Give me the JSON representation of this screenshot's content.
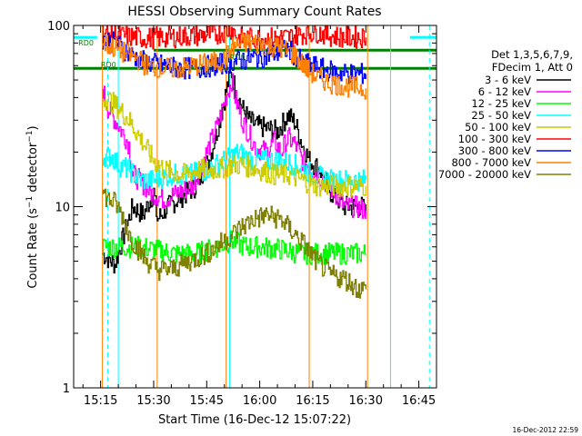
{
  "chart_data": {
    "type": "line",
    "title": "HESSI Observing Summary Count Rates",
    "xlabel": "Start Time (16-Dec-12 15:07:22)",
    "ylabel": "Count Rate (s⁻¹ detector⁻¹)",
    "ylabel_parts": {
      "main": "Count Rate (s",
      "sup1": "−1",
      "mid": " detector",
      "sup2": "−1",
      "end": ")"
    },
    "x_ticks": [
      "15:15",
      "15:30",
      "15:45",
      "16:00",
      "16:15",
      "16:30",
      "16:45"
    ],
    "x_tick_minutes": [
      15,
      30,
      45,
      60,
      75,
      90,
      105
    ],
    "x_range_minutes": [
      7.37,
      110
    ],
    "y_scale": "log",
    "y_range": [
      1,
      100
    ],
    "y_ticks": [
      "1",
      "10",
      "100"
    ],
    "y_tick_values": [
      1,
      10,
      100
    ],
    "legend_header": [
      "Det 1,3,5,6,7,9,",
      "FDecim 1, Att 0"
    ],
    "footer_date": "16-Dec-2012 22:59",
    "annotations": [
      "RD0",
      "RD0",
      "RD0"
    ],
    "series": [
      {
        "name": "3 - 6 keV",
        "color": "#000000",
        "points": [
          [
            15.5,
            5.5
          ],
          [
            19,
            4.8
          ],
          [
            24,
            10
          ],
          [
            27,
            9
          ],
          [
            30,
            12
          ],
          [
            31,
            8.5
          ],
          [
            34,
            10
          ],
          [
            37,
            11
          ],
          [
            42,
            13
          ],
          [
            46,
            19
          ],
          [
            49,
            32
          ],
          [
            51,
            48
          ],
          [
            52,
            55
          ],
          [
            53,
            45
          ],
          [
            55,
            35
          ],
          [
            57,
            30
          ],
          [
            59,
            28
          ],
          [
            62,
            27
          ],
          [
            65,
            26
          ],
          [
            68,
            32
          ],
          [
            70,
            29
          ],
          [
            72,
            22
          ],
          [
            74,
            18
          ],
          [
            77,
            16
          ],
          [
            80,
            12
          ],
          [
            84,
            10
          ],
          [
            87,
            10
          ],
          [
            89,
            10
          ],
          [
            90,
            9
          ]
        ]
      },
      {
        "name": "6 - 12 keV",
        "color": "#ff00ff",
        "points": [
          [
            15.5,
            45
          ],
          [
            17,
            35
          ],
          [
            19,
            30
          ],
          [
            20,
            28
          ],
          [
            22,
            24
          ],
          [
            23,
            22
          ],
          [
            24,
            15
          ],
          [
            26,
            14
          ],
          [
            29,
            12
          ],
          [
            33,
            11
          ],
          [
            37,
            12
          ],
          [
            41,
            13
          ],
          [
            45,
            20
          ],
          [
            48,
            28
          ],
          [
            50,
            38
          ],
          [
            52,
            50
          ],
          [
            53,
            40
          ],
          [
            55,
            30
          ],
          [
            57,
            25
          ],
          [
            59,
            21
          ],
          [
            62,
            20
          ],
          [
            64,
            23
          ],
          [
            66,
            20
          ],
          [
            68,
            24
          ],
          [
            70,
            22
          ],
          [
            72,
            18
          ],
          [
            75,
            16
          ],
          [
            78,
            14
          ],
          [
            81,
            12
          ],
          [
            84,
            10
          ],
          [
            87,
            10
          ],
          [
            90,
            9.5
          ]
        ]
      },
      {
        "name": "12 - 25 keV",
        "color": "#00ff00",
        "points": [
          [
            15.5,
            6
          ],
          [
            22,
            6
          ],
          [
            26,
            6
          ],
          [
            30,
            5.8
          ],
          [
            36,
            5.5
          ],
          [
            42,
            5.5
          ],
          [
            48,
            6
          ],
          [
            52,
            6.5
          ],
          [
            56,
            6
          ],
          [
            60,
            6
          ],
          [
            66,
            5.8
          ],
          [
            72,
            5.5
          ],
          [
            78,
            5.5
          ],
          [
            84,
            5.5
          ],
          [
            90,
            5.5
          ]
        ]
      },
      {
        "name": "25 - 50 keV",
        "color": "#00ffff",
        "points": [
          [
            15.5,
            19
          ],
          [
            18,
            19
          ],
          [
            20,
            17
          ],
          [
            23,
            16
          ],
          [
            26,
            14
          ],
          [
            30,
            14
          ],
          [
            35,
            15
          ],
          [
            40,
            15
          ],
          [
            45,
            16
          ],
          [
            50,
            18
          ],
          [
            54,
            20
          ],
          [
            58,
            18
          ],
          [
            62,
            18
          ],
          [
            66,
            18
          ],
          [
            70,
            17
          ],
          [
            75,
            15
          ],
          [
            80,
            14
          ],
          [
            85,
            14
          ],
          [
            90,
            14
          ]
        ]
      },
      {
        "name": "50 - 100 keV",
        "color": "#cccc00",
        "points": [
          [
            15.5,
            40
          ],
          [
            18,
            38
          ],
          [
            20,
            35
          ],
          [
            23,
            30
          ],
          [
            25,
            26
          ],
          [
            30,
            18
          ],
          [
            33,
            16
          ],
          [
            38,
            15
          ],
          [
            43,
            16
          ],
          [
            48,
            16
          ],
          [
            52,
            17
          ],
          [
            55,
            17
          ],
          [
            60,
            16
          ],
          [
            64,
            15
          ],
          [
            68,
            15
          ],
          [
            72,
            14
          ],
          [
            76,
            13
          ],
          [
            80,
            13
          ],
          [
            85,
            13
          ],
          [
            90,
            13
          ]
        ]
      },
      {
        "name": "100 - 300 keV",
        "color": "#ff0000",
        "points": [
          [
            15.5,
            90
          ],
          [
            20,
            88
          ],
          [
            25,
            86
          ],
          [
            28,
            85
          ],
          [
            33,
            86
          ],
          [
            38,
            87
          ],
          [
            43,
            88
          ],
          [
            48,
            90
          ],
          [
            52,
            96
          ],
          [
            54,
            85
          ],
          [
            58,
            85
          ],
          [
            62,
            85
          ],
          [
            68,
            86
          ],
          [
            72,
            90
          ],
          [
            76,
            92
          ],
          [
            80,
            88
          ],
          [
            84,
            86
          ],
          [
            88,
            86
          ],
          [
            90,
            86
          ]
        ]
      },
      {
        "name": "300 - 800 keV",
        "color": "#0000ff",
        "points": [
          [
            15.5,
            85
          ],
          [
            20,
            78
          ],
          [
            24,
            68
          ],
          [
            26,
            64
          ],
          [
            29,
            62
          ],
          [
            33,
            60
          ],
          [
            37,
            58
          ],
          [
            41,
            58
          ],
          [
            44,
            59
          ],
          [
            47,
            60
          ],
          [
            50,
            62
          ],
          [
            54,
            64
          ],
          [
            58,
            66
          ],
          [
            62,
            68
          ],
          [
            66,
            72
          ],
          [
            68,
            74
          ],
          [
            70,
            68
          ],
          [
            72,
            62
          ],
          [
            75,
            60
          ],
          [
            78,
            57
          ],
          [
            82,
            55
          ],
          [
            86,
            54
          ],
          [
            90,
            54
          ]
        ]
      },
      {
        "name": "800 - 7000 keV",
        "color": "#ff8000",
        "points": [
          [
            15.5,
            80
          ],
          [
            19,
            75
          ],
          [
            22,
            70
          ],
          [
            25,
            66
          ],
          [
            28,
            60
          ],
          [
            33,
            58
          ],
          [
            38,
            58
          ],
          [
            42,
            60
          ],
          [
            46,
            62
          ],
          [
            50,
            64
          ],
          [
            52,
            75
          ],
          [
            55,
            80
          ],
          [
            58,
            80
          ],
          [
            62,
            78
          ],
          [
            66,
            75
          ],
          [
            70,
            68
          ],
          [
            73,
            58
          ],
          [
            76,
            52
          ],
          [
            80,
            48
          ],
          [
            85,
            46
          ],
          [
            90,
            45
          ]
        ]
      },
      {
        "name": "7000 - 20000 keV",
        "color": "#808000",
        "points": [
          [
            15.5,
            12
          ],
          [
            17,
            11
          ],
          [
            19,
            10.5
          ],
          [
            21,
            9
          ],
          [
            23,
            7
          ],
          [
            25,
            6
          ],
          [
            28,
            5
          ],
          [
            31,
            4.5
          ],
          [
            35,
            4.5
          ],
          [
            40,
            5
          ],
          [
            45,
            5.5
          ],
          [
            50,
            6.5
          ],
          [
            54,
            7.5
          ],
          [
            58,
            8.5
          ],
          [
            62,
            9
          ],
          [
            66,
            8.5
          ],
          [
            70,
            7
          ],
          [
            73,
            6
          ],
          [
            76,
            5
          ],
          [
            80,
            4.2
          ],
          [
            84,
            4
          ],
          [
            88,
            3.5
          ],
          [
            90,
            3.5
          ]
        ]
      }
    ],
    "levels": [
      {
        "color": "#00ffff",
        "value": 86,
        "from": 7.37,
        "to": 14
      },
      {
        "color": "#00ffff",
        "value": 86,
        "from": 102.5,
        "to": 110
      },
      {
        "color": "#008000",
        "value": 58,
        "from": 7.37,
        "to": 110
      },
      {
        "color": "#008000",
        "value": 73,
        "from": 30,
        "to": 110
      }
    ],
    "markers": [
      {
        "color": "#00ffff",
        "style": "dashed",
        "x": 17
      },
      {
        "color": "#00ffff",
        "style": "dashed",
        "x": 108
      },
      {
        "color": "#ff8000",
        "style": "solid",
        "x": 15.5
      },
      {
        "color": "#ff8000",
        "style": "solid",
        "x": 31
      },
      {
        "color": "#ff8000",
        "style": "solid",
        "x": 50.5
      },
      {
        "color": "#ff8000",
        "style": "solid",
        "x": 74
      },
      {
        "color": "#ff8000",
        "style": "solid",
        "x": 90.5
      },
      {
        "color": "#00ffff",
        "style": "solid",
        "x": 20
      },
      {
        "color": "#00ffff",
        "style": "solid",
        "x": 51.5
      },
      {
        "color": "#00ffff",
        "style": "solid",
        "x": 97
      }
    ]
  }
}
